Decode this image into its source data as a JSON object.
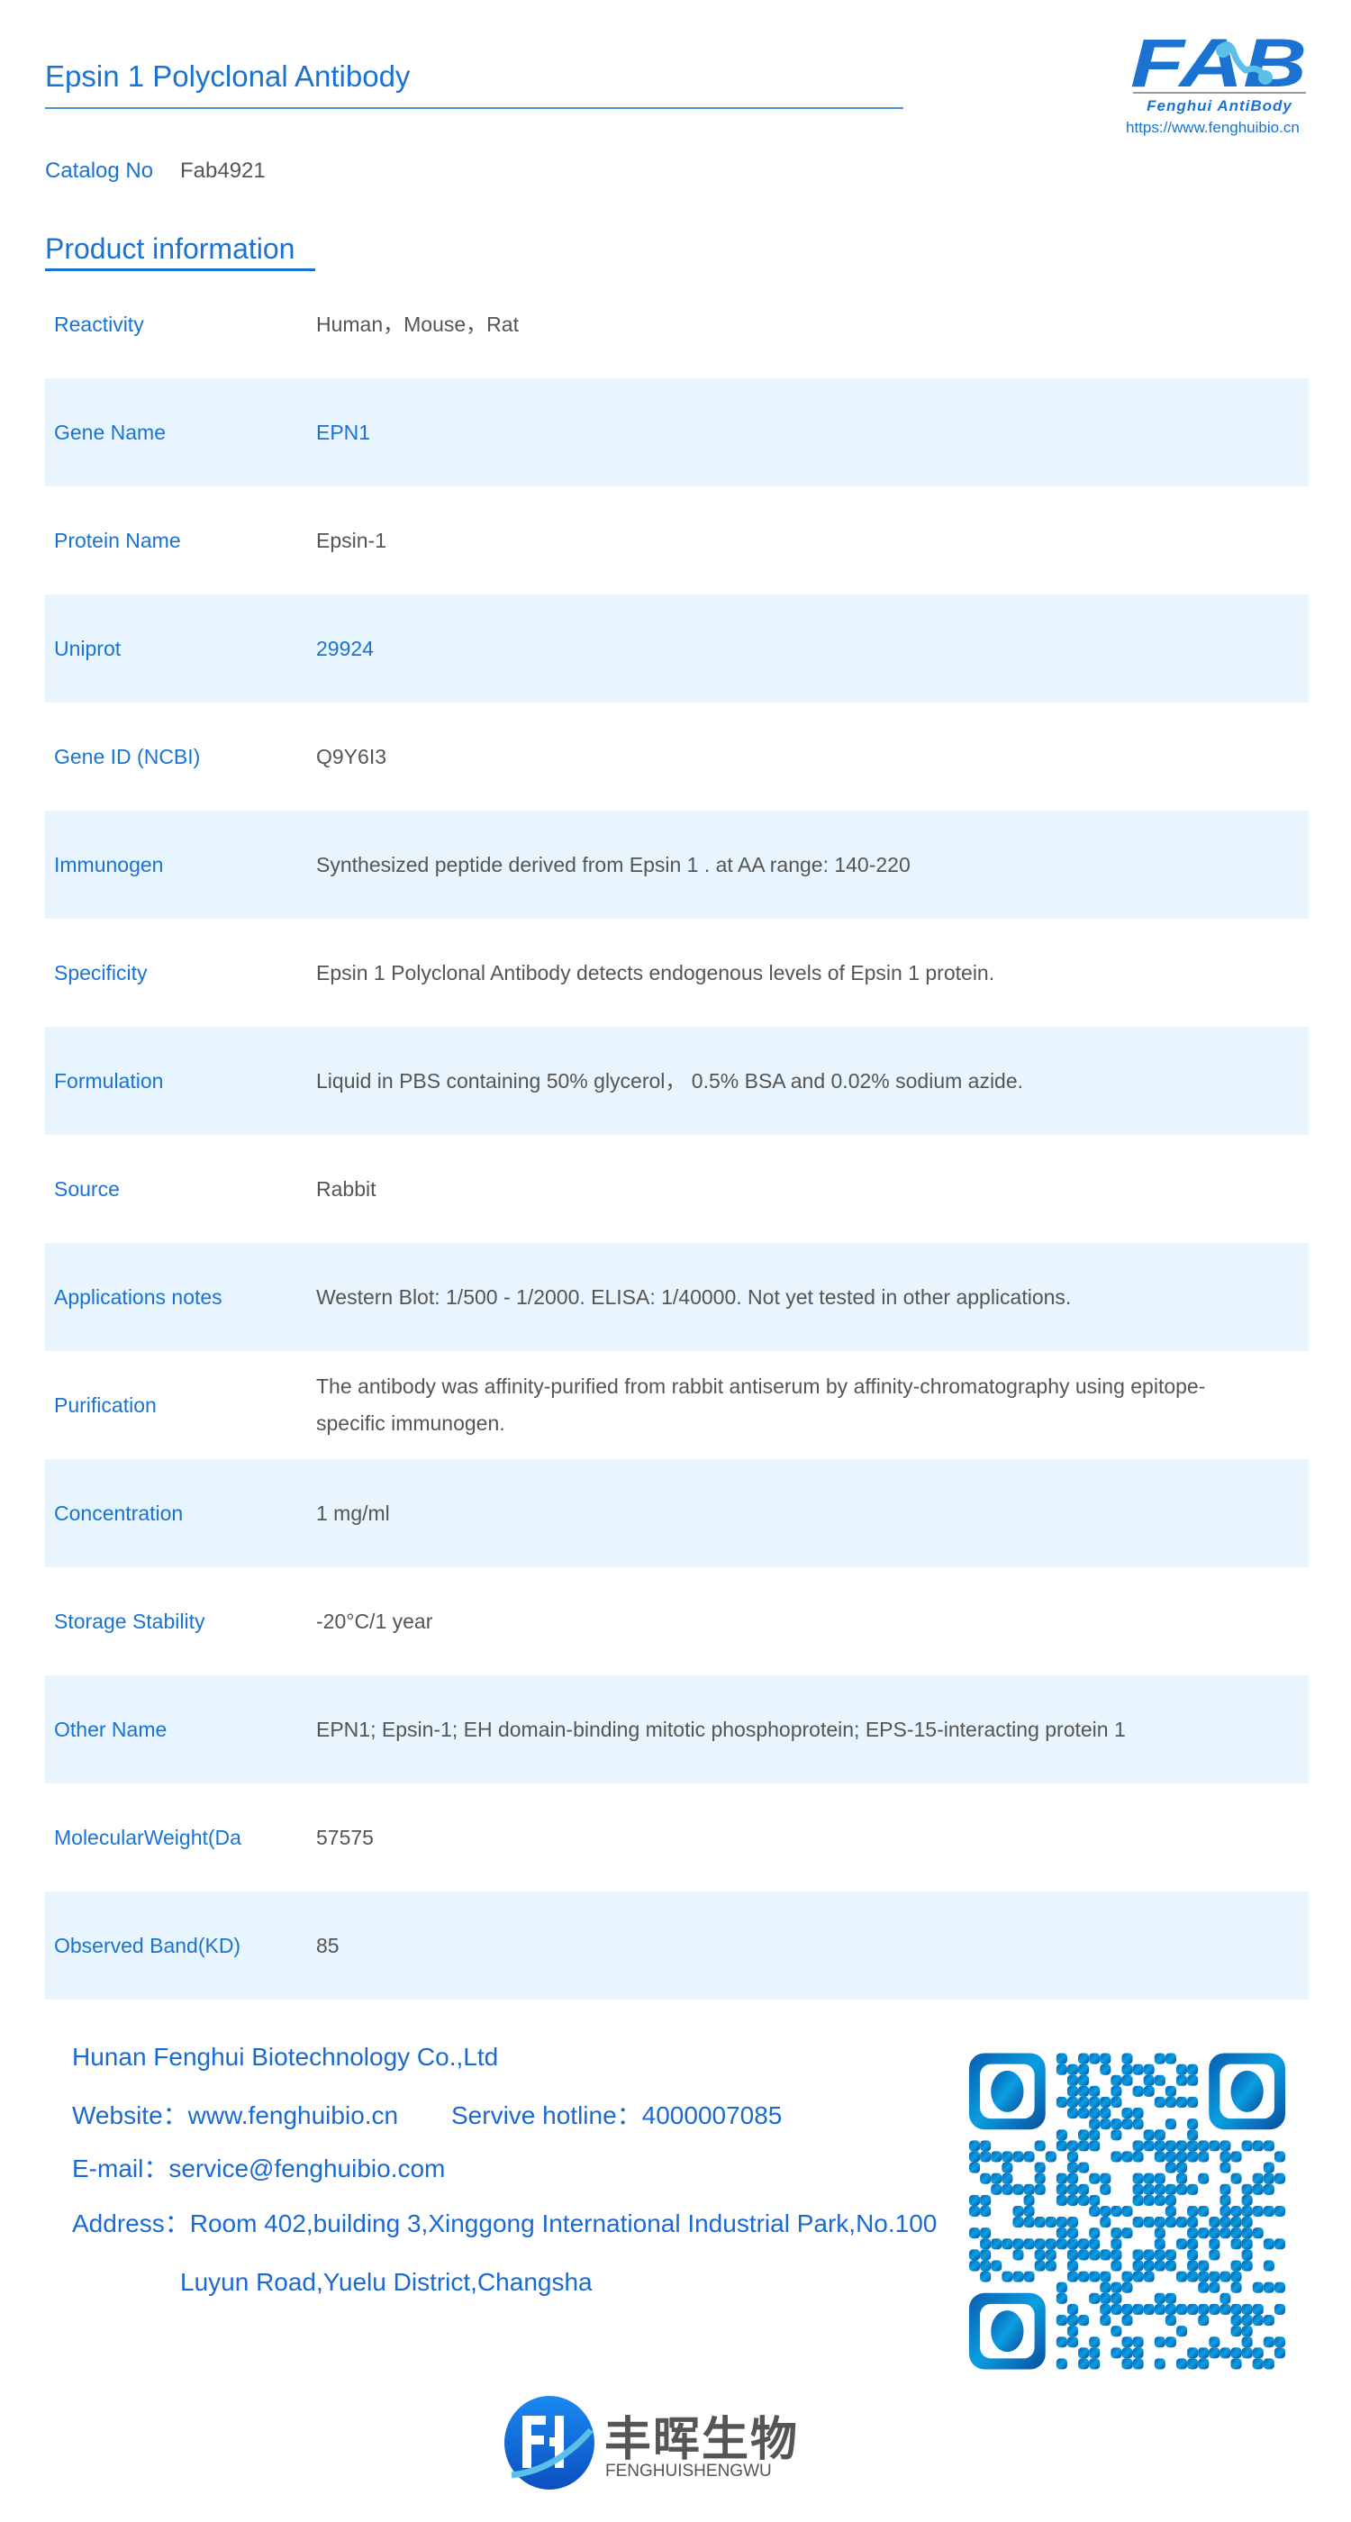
{
  "header": {
    "title": "Epsin 1 Polyclonal Antibody",
    "logo_text": "FAB",
    "logo_subtitle": "Fenghui AntiBody",
    "logo_url": "https://www.fenghuibio.cn",
    "catalog_label": "Catalog No",
    "catalog_value": "Fab4921"
  },
  "section_title": "Product information",
  "rows": [
    {
      "label": "Reactivity",
      "value": "Human，Mouse，Rat"
    },
    {
      "label": "Gene Name",
      "value": "EPN1"
    },
    {
      "label": "Protein Name",
      "value": "Epsin-1"
    },
    {
      "label": "Uniprot",
      "value": "29924"
    },
    {
      "label": "Gene ID (NCBI)",
      "value": "Q9Y6I3"
    },
    {
      "label": "Immunogen",
      "value": "Synthesized peptide derived from Epsin 1 . at AA range: 140-220"
    },
    {
      "label": "Specificity",
      "value": "Epsin 1 Polyclonal Antibody detects endogenous levels of Epsin 1 protein."
    },
    {
      "label": "Formulation",
      "value": "Liquid in PBS containing 50% glycerol， 0.5% BSA and 0.02% sodium azide."
    },
    {
      "label": "Source",
      "value": "Rabbit"
    },
    {
      "label": "Applications notes",
      "value": "Western Blot: 1/500 - 1/2000. ELISA: 1/40000. Not yet tested in other applications."
    },
    {
      "label": "Purification",
      "value": "The antibody was affinity-purified from rabbit antiserum by affinity-chromatography using epitope-specific immunogen."
    },
    {
      "label": "Concentration",
      "value": "1 mg/ml"
    },
    {
      "label": "Storage Stability",
      "value": "-20°C/1 year"
    },
    {
      "label": "Other Name",
      "value": "EPN1; Epsin-1; EH domain-binding mitotic phosphoprotein; EPS-15-interacting protein 1"
    },
    {
      "label": "MolecularWeight(Da",
      "value": "57575"
    },
    {
      "label": "Observed Band(KD)",
      "value": "85"
    }
  ],
  "footer": {
    "company": "Hunan Fenghui Biotechnology Co.,Ltd",
    "website": "Website：www.fenghuibio.cn",
    "hotline": "Servive hotline：4000007085",
    "email": "E-mail：service@fenghuibio.com",
    "address_line1": "Address：Room 402,building 3,Xinggong International Industrial Park,No.100",
    "address_line2": "Luyun Road,Yuelu District,Changsha",
    "brand_cn": "丰晖生物",
    "brand_en": "FENGHUISHENGWU"
  },
  "colors": {
    "accent": "#1a73d0",
    "row_shade": "#e8f5fe",
    "value_text": "#555555"
  }
}
